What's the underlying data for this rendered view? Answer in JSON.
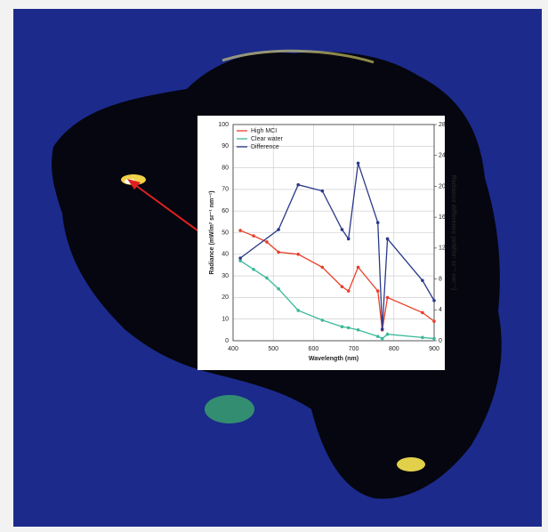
{
  "chart_data": {
    "type": "line",
    "xlabel": "Wavelength (nm)",
    "ylabel": "Radiance (mW/m² sr⁻¹ nm⁻¹)",
    "y2label": "Radiance difference (mW/m² sr⁻¹ nm⁻¹)",
    "x": [
      418,
      451,
      484,
      513,
      562,
      622,
      671,
      687,
      711,
      760,
      771,
      784,
      871,
      900
    ],
    "series": [
      {
        "name": "High MCI",
        "color": "#e8402a",
        "values": [
          51,
          48.5,
          45.7,
          41,
          40,
          34,
          25,
          23,
          34,
          23,
          5,
          20,
          13,
          9
        ]
      },
      {
        "name": "Clear water",
        "color": "#3cb89a",
        "values": [
          37,
          33,
          29,
          24,
          14,
          9.5,
          6.5,
          6,
          5,
          2,
          1,
          3,
          1.5,
          1
        ]
      },
      {
        "name": "Difference",
        "color": "#2a3a8a",
        "axis": "y2",
        "x": [
          418,
          513,
          562,
          622,
          671,
          687,
          711,
          760,
          771,
          784,
          871,
          900
        ],
        "values": [
          10.7,
          14.4,
          20.2,
          19.4,
          14.4,
          13.2,
          23,
          15.3,
          1.5,
          13.2,
          7.8,
          5.2
        ]
      }
    ],
    "xlim": [
      400,
      900
    ],
    "xticks": [
      400,
      500,
      600,
      700,
      800,
      900
    ],
    "ylim": [
      0,
      100
    ],
    "yticks": [
      0,
      10,
      20,
      30,
      40,
      50,
      60,
      70,
      80,
      90,
      100
    ],
    "y2lim": [
      0,
      28
    ],
    "y2ticks": [
      0,
      4,
      8,
      12,
      16,
      20,
      24,
      28
    ],
    "grid": true,
    "legend": "upper-left"
  }
}
